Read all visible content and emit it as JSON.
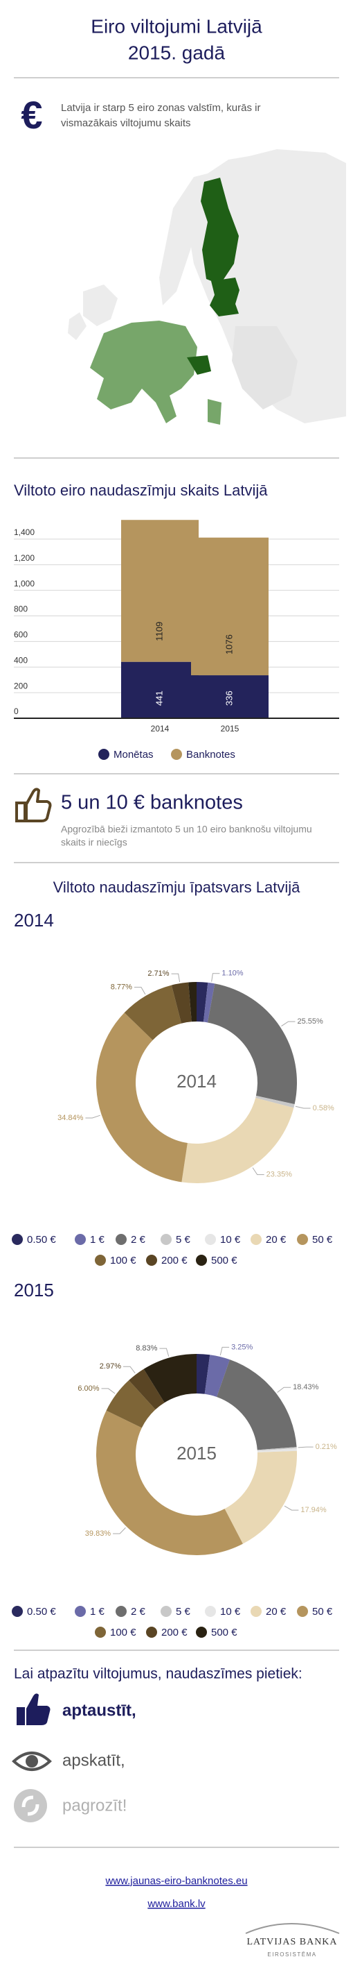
{
  "header": {
    "title_lines": [
      "Eiro viltojumi Latvijā",
      "2015. gadā"
    ]
  },
  "intro": {
    "symbol": "€",
    "text_lines": [
      "Latvija ir starp 5 eiro zonas valstīm, kurās ir",
      "vismazākais viltojumu skaits"
    ]
  },
  "chart_data": [
    {
      "type": "stacked_bar",
      "title": "Viltoto eiro naudaszīmju skaits Latvijā",
      "categories": [
        "2014",
        "2015"
      ],
      "series": [
        {
          "name": "Monētas",
          "color": "#23235b",
          "values": [
            441,
            336
          ]
        },
        {
          "name": "Banknotes",
          "color": "#b5955e",
          "values": [
            1109,
            1076
          ]
        }
      ],
      "ylim": [
        0,
        1600
      ],
      "yticks": [
        0,
        200,
        400,
        600,
        800,
        {
          "value": 1000,
          "label": "1,000"
        },
        {
          "value": 1200,
          "label": "1,200"
        },
        {
          "value": 1400,
          "label": "1,400"
        }
      ],
      "grid": true,
      "legend": "bottom"
    },
    {
      "type": "donut",
      "title": "2014",
      "categories": [
        "0.50 €",
        "1 €",
        "2 €",
        "5 €",
        "10 €",
        "20 €",
        "50 €",
        "100 €",
        "200 €",
        "500 €"
      ],
      "values": [
        1.8,
        1.1,
        25.55,
        0.58,
        0,
        23.35,
        34.84,
        8.77,
        2.71,
        1.3
      ],
      "value_labels": [
        null,
        "1.10%",
        "25.55%",
        "0.58%",
        null,
        "23.35%",
        "34.84%",
        "8.77%",
        "2.71%",
        null
      ],
      "colors": [
        "#2a2a5e",
        "#6b6ba8",
        "#6e6e6e",
        "#c8c8c8",
        "#e6e6e6",
        "#e9d8b4",
        "#b5955e",
        "#7e6537",
        "#5a4524",
        "#2a2212"
      ],
      "legend": "bottom"
    },
    {
      "type": "donut",
      "title": "2015",
      "categories": [
        "0.50 €",
        "1 €",
        "2 €",
        "5 €",
        "10 €",
        "20 €",
        "50 €",
        "100 €",
        "200 €",
        "500 €"
      ],
      "values": [
        2.12,
        3.25,
        18.43,
        0.21,
        0.42,
        17.94,
        39.83,
        6.0,
        2.97,
        8.83
      ],
      "value_labels": [
        null,
        "3.25%",
        "18.43%",
        "0.21%",
        null,
        "17.94%",
        "39.83%",
        "6.00%",
        "2.97%",
        "8.83%"
      ],
      "colors": [
        "#2a2a5e",
        "#6b6ba8",
        "#6e6e6e",
        "#c8c8c8",
        "#e6e6e6",
        "#e9d8b4",
        "#b5955e",
        "#7e6537",
        "#5a4524",
        "#2a2212"
      ],
      "legend": "bottom"
    }
  ],
  "highlight": {
    "title": "5 un 10 € banknotes",
    "text_lines": [
      "Apgrozībā bieži izmantoto 5 un 10 eiro banknošu viltojumu",
      "skaits ir niecīgs"
    ]
  },
  "share_section": {
    "title": "Viltoto naudaszīmju īpatsvars Latvijā"
  },
  "tips": {
    "title": "Lai atpazītu viltojumus, naudaszīmes pietiek:",
    "items": [
      "aptaustīt,",
      "apskatīt,",
      "pagrozīt!"
    ]
  },
  "links": [
    "www.jaunas-eiro-banknotes.eu",
    "www.bank.lv"
  ],
  "logo": {
    "name": "LATVIJAS BANKA",
    "subtitle": "EIROSISTĒMA"
  }
}
